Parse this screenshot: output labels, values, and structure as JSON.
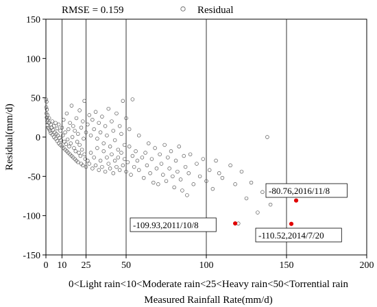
{
  "chart_data": {
    "type": "scatter",
    "title": "",
    "xlabel": "Measured Rainfall Rate(mm/d)",
    "ylabel": "Residual(mm/d)",
    "xlim": [
      0,
      200
    ],
    "ylim": [
      -150,
      150
    ],
    "xticks": [
      0,
      10,
      25,
      50,
      100,
      150,
      200
    ],
    "yticks": [
      -150,
      -100,
      -50,
      0,
      50,
      100,
      150
    ],
    "xtick_labels": [
      "0",
      "10",
      "25",
      "50",
      "100",
      "150",
      "200"
    ],
    "ytick_labels": [
      "-150",
      "-100",
      "-50",
      "0",
      "50",
      "100",
      "150"
    ],
    "vertical_lines": [
      10,
      25,
      50,
      100,
      150
    ],
    "category_label": "0<Light rain<10<Moderate rain<25<Heavy rain<50<Torrential rain",
    "rmse_label": "RMSE = 0.159",
    "legend": {
      "label": "Residual",
      "position": "top-center",
      "marker": "open-circle"
    },
    "colors": {
      "points": "#555555",
      "highlight": "#e00000"
    },
    "series": [
      {
        "name": "Residual",
        "points": [
          [
            0.1,
            48
          ],
          [
            0.2,
            38
          ],
          [
            0.3,
            30
          ],
          [
            0.4,
            45
          ],
          [
            0.5,
            25
          ],
          [
            0.6,
            35
          ],
          [
            0.8,
            20
          ],
          [
            1,
            28
          ],
          [
            1,
            15
          ],
          [
            1.2,
            22
          ],
          [
            1.5,
            12
          ],
          [
            1.8,
            18
          ],
          [
            2,
            10
          ],
          [
            2,
            24
          ],
          [
            2.5,
            8
          ],
          [
            3,
            16
          ],
          [
            3,
            5
          ],
          [
            3.5,
            12
          ],
          [
            4,
            3
          ],
          [
            4,
            20
          ],
          [
            4.5,
            9
          ],
          [
            5,
            0
          ],
          [
            5,
            14
          ],
          [
            5.5,
            6
          ],
          [
            6,
            -2
          ],
          [
            6,
            18
          ],
          [
            6.5,
            4
          ],
          [
            7,
            -5
          ],
          [
            7,
            11
          ],
          [
            7.5,
            2
          ],
          [
            8,
            -8
          ],
          [
            8,
            16
          ],
          [
            8.5,
            -1
          ],
          [
            9,
            -10
          ],
          [
            9,
            8
          ],
          [
            9.5,
            -4
          ],
          [
            10,
            -12
          ],
          [
            10,
            12
          ],
          [
            10.5,
            2
          ],
          [
            11,
            -14
          ],
          [
            11,
            22
          ],
          [
            11.5,
            -6
          ],
          [
            12,
            -16
          ],
          [
            12,
            6
          ],
          [
            12.5,
            -9
          ],
          [
            13,
            -18
          ],
          [
            13,
            30
          ],
          [
            13.5,
            -3
          ],
          [
            14,
            -20
          ],
          [
            14,
            10
          ],
          [
            14.5,
            -12
          ],
          [
            15,
            -22
          ],
          [
            15,
            18
          ],
          [
            15.5,
            -8
          ],
          [
            16,
            -24
          ],
          [
            16,
            40
          ],
          [
            16.5,
            0
          ],
          [
            17,
            -26
          ],
          [
            17,
            14
          ],
          [
            17.5,
            -14
          ],
          [
            18,
            -28
          ],
          [
            18,
            8
          ],
          [
            18.5,
            -18
          ],
          [
            19,
            -30
          ],
          [
            19,
            24
          ],
          [
            19.5,
            -6
          ],
          [
            20,
            -32
          ],
          [
            20,
            4
          ],
          [
            20.5,
            -20
          ],
          [
            21,
            -10
          ],
          [
            21,
            34
          ],
          [
            21.5,
            -24
          ],
          [
            22,
            -34
          ],
          [
            22,
            12
          ],
          [
            22.5,
            -16
          ],
          [
            23,
            -36
          ],
          [
            23,
            20
          ],
          [
            23.5,
            -2
          ],
          [
            24,
            -22
          ],
          [
            24,
            46
          ],
          [
            24.5,
            -28
          ],
          [
            25,
            -38
          ],
          [
            25,
            6
          ],
          [
            26,
            -30
          ],
          [
            26,
            16
          ],
          [
            27,
            -34
          ],
          [
            27,
            28
          ],
          [
            28,
            -20
          ],
          [
            28,
            2
          ],
          [
            29,
            -40
          ],
          [
            29,
            22
          ],
          [
            30,
            -26
          ],
          [
            30,
            10
          ],
          [
            31,
            -36
          ],
          [
            31,
            32
          ],
          [
            32,
            -14
          ],
          [
            32,
            -2
          ],
          [
            33,
            -42
          ],
          [
            33,
            18
          ],
          [
            34,
            -30
          ],
          [
            34,
            6
          ],
          [
            35,
            -38
          ],
          [
            35,
            26
          ],
          [
            36,
            -18
          ],
          [
            36,
            -8
          ],
          [
            37,
            -44
          ],
          [
            37,
            14
          ],
          [
            38,
            -26
          ],
          [
            38,
            2
          ],
          [
            39,
            -34
          ],
          [
            39,
            36
          ],
          [
            40,
            -40
          ],
          [
            40,
            -12
          ],
          [
            41,
            -22
          ],
          [
            41,
            20
          ],
          [
            42,
            -46
          ],
          [
            42,
            8
          ],
          [
            43,
            -30
          ],
          [
            43,
            -4
          ],
          [
            44,
            -38
          ],
          [
            44,
            30
          ],
          [
            45,
            -16
          ],
          [
            45,
            -26
          ],
          [
            46,
            -42
          ],
          [
            46,
            14
          ],
          [
            47,
            -20
          ],
          [
            47,
            4
          ],
          [
            48,
            -36
          ],
          [
            48,
            46
          ],
          [
            49,
            -28
          ],
          [
            49,
            -10
          ],
          [
            50,
            -44
          ],
          [
            50,
            24
          ],
          [
            51,
            -32
          ],
          [
            52,
            -12
          ],
          [
            52,
            10
          ],
          [
            53,
            -48
          ],
          [
            54,
            -24
          ],
          [
            54,
            48
          ],
          [
            55,
            -38
          ],
          [
            56,
            -18
          ],
          [
            57,
            -30
          ],
          [
            58,
            -42
          ],
          [
            58,
            2
          ],
          [
            60,
            -26
          ],
          [
            61,
            -52
          ],
          [
            62,
            -20
          ],
          [
            63,
            -36
          ],
          [
            64,
            -8
          ],
          [
            65,
            -46
          ],
          [
            66,
            -28
          ],
          [
            67,
            -58
          ],
          [
            68,
            -14
          ],
          [
            69,
            -40
          ],
          [
            70,
            -60
          ],
          [
            71,
            -22
          ],
          [
            72,
            -34
          ],
          [
            73,
            -48
          ],
          [
            74,
            -10
          ],
          [
            75,
            -56
          ],
          [
            76,
            -26
          ],
          [
            77,
            -40
          ],
          [
            78,
            -18
          ],
          [
            79,
            -50
          ],
          [
            80,
            -64
          ],
          [
            81,
            -30
          ],
          [
            82,
            -44
          ],
          [
            83,
            -12
          ],
          [
            84,
            -54
          ],
          [
            85,
            -68
          ],
          [
            86,
            -24
          ],
          [
            87,
            -38
          ],
          [
            88,
            -74
          ],
          [
            89,
            -46
          ],
          [
            90,
            -22
          ],
          [
            92,
            -60
          ],
          [
            94,
            -34
          ],
          [
            96,
            -50
          ],
          [
            98,
            -28
          ],
          [
            100,
            -56
          ],
          [
            102,
            -42
          ],
          [
            104,
            -66
          ],
          [
            106,
            -30
          ],
          [
            108,
            -46
          ],
          [
            110,
            -52
          ],
          [
            115,
            -36
          ],
          [
            118,
            -60
          ],
          [
            122,
            -44
          ],
          [
            125,
            -78
          ],
          [
            128,
            -58
          ],
          [
            132,
            -96
          ],
          [
            135,
            -70
          ],
          [
            138,
            0
          ],
          [
            140,
            -86
          ],
          [
            145,
            -64
          ],
          [
            120,
            -110
          ]
        ]
      }
    ],
    "highlights": [
      {
        "x": 118,
        "y": -109.93,
        "label": "-109.93,2011/10/8"
      },
      {
        "x": 153,
        "y": -110.52,
        "label": "-110.52,2014/7/20"
      },
      {
        "x": 156,
        "y": -80.76,
        "label": "-80.76,2016/11/8"
      }
    ]
  }
}
